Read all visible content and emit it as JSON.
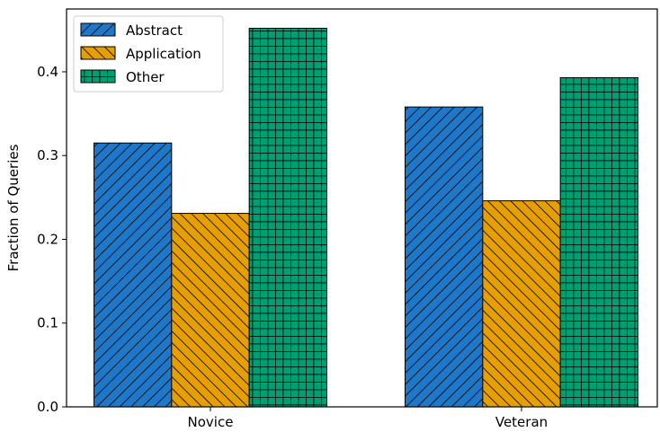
{
  "chart_data": {
    "type": "bar",
    "title": "",
    "xlabel": "",
    "ylabel": "Fraction of Queries",
    "categories": [
      "Novice",
      "Veteran"
    ],
    "series": [
      {
        "name": "Abstract",
        "values": [
          0.315,
          0.358
        ],
        "color": "#1f77c8",
        "hatch": "forward-diagonal"
      },
      {
        "name": "Application",
        "values": [
          0.231,
          0.246
        ],
        "color": "#e69f00",
        "hatch": "backward-diagonal"
      },
      {
        "name": "Other",
        "values": [
          0.452,
          0.393
        ],
        "color": "#009e73",
        "hatch": "grid"
      }
    ],
    "ylim": [
      0,
      0.475
    ],
    "yticks": [
      0.0,
      0.1,
      0.2,
      0.3,
      0.4
    ],
    "ytick_labels": [
      "0.0",
      "0.1",
      "0.2",
      "0.3",
      "0.4"
    ],
    "grid": false,
    "legend_position": "top-left"
  }
}
